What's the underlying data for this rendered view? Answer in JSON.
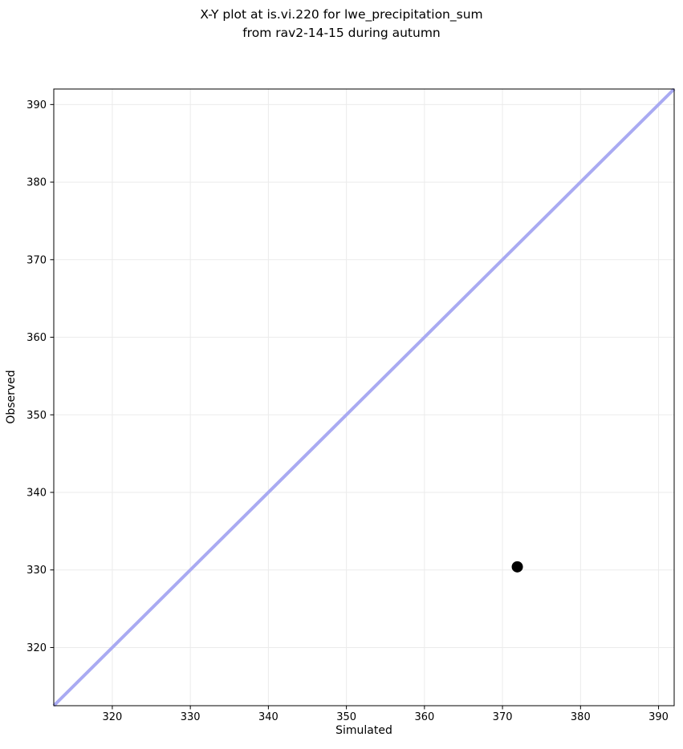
{
  "chart_data": {
    "type": "scatter",
    "title": "X-Y plot at is.vi.220 for lwe_precipitation_sum\nfrom rav2-14-15 during autumn",
    "xlabel": "Simulated",
    "ylabel": "Observed",
    "xlim": [
      312.5,
      392.0
    ],
    "ylim": [
      312.5,
      392.0
    ],
    "xticks": [
      320,
      330,
      340,
      350,
      360,
      370,
      380,
      390
    ],
    "yticks": [
      320,
      330,
      340,
      350,
      360,
      370,
      380,
      390
    ],
    "grid": true,
    "grid_color": "#ebebeb",
    "spine_color": "#000000",
    "legend": false,
    "identity_line": {
      "name": "identity-line",
      "x": [
        312.5,
        392.0
      ],
      "y": [
        312.5,
        392.0
      ],
      "color": "#a9aaf2",
      "width": 4
    },
    "series": [
      {
        "name": "observations",
        "points": [
          [
            371.9,
            330.4
          ]
        ],
        "color": "#000000",
        "radius": 7
      }
    ]
  }
}
